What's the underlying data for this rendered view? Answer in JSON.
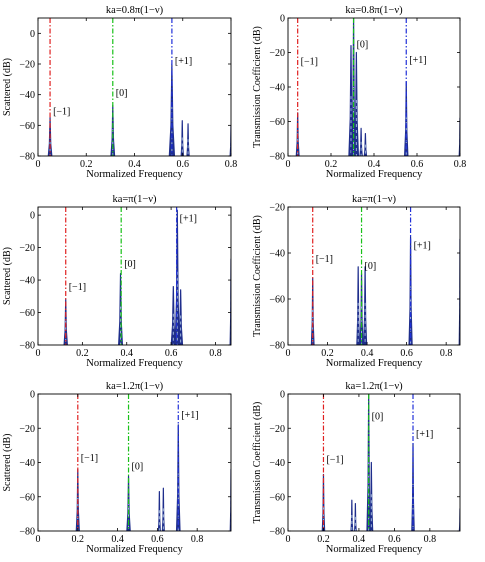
{
  "colors": {
    "signal": "#1f2e8c",
    "signal_light": "#9ab3d8",
    "order_minus1": "#e02020",
    "order_0": "#18c018",
    "order_plus1": "#2030d8"
  },
  "chart_data": [
    {
      "type": "line",
      "title": "ka=0.8π(1−ν)",
      "xlabel": "Normalized Frequency",
      "ylabel": "Scattered (dB)",
      "xlim": [
        0,
        0.8
      ],
      "ylim": [
        -80,
        10
      ],
      "xticks": [
        "0",
        "0.2",
        "0.4",
        "0.6",
        "0.8"
      ],
      "xtick_values": [
        0,
        0.2,
        0.4,
        0.6,
        0.8
      ],
      "yticks": [
        "0",
        "−20",
        "−40",
        "−60",
        "−80"
      ],
      "ytick_values": [
        0,
        -20,
        -40,
        -60,
        -80
      ],
      "order_lines": [
        {
          "label": "[−1]",
          "x": 0.05,
          "label_y": -53
        },
        {
          "label": "[0]",
          "x": 0.31,
          "label_y": -41
        },
        {
          "label": "[+1]",
          "x": 0.555,
          "label_y": -20
        }
      ],
      "peaks": [
        {
          "x": 0.05,
          "top": -55,
          "w": 0.008
        },
        {
          "x": 0.31,
          "top": -47,
          "w": 0.008
        },
        {
          "x": 0.555,
          "top": -20,
          "w": 0.011
        },
        {
          "x": 0.598,
          "top": -57,
          "w": 0.005
        },
        {
          "x": 0.622,
          "top": -59,
          "w": 0.005
        },
        {
          "x": 0.8,
          "top": -60,
          "w": 0.004
        }
      ]
    },
    {
      "type": "line",
      "title": "ka=0.8π(1−ν)",
      "xlabel": "Normalized Frequency",
      "ylabel": "Transmission Coefficient (dB)",
      "xlim": [
        0,
        0.8
      ],
      "ylim": [
        -80,
        0
      ],
      "xticks": [
        "0",
        "0.2",
        "0.4",
        "0.6",
        "0.8"
      ],
      "xtick_values": [
        0,
        0.2,
        0.4,
        0.6,
        0.8
      ],
      "yticks": [
        "0",
        "−20",
        "−40",
        "−60",
        "−80"
      ],
      "ytick_values": [
        0,
        -20,
        -40,
        -60,
        -80
      ],
      "order_lines": [
        {
          "label": "[−1]",
          "x": 0.045,
          "label_y": -27
        },
        {
          "label": "[0]",
          "x": 0.305,
          "label_y": -17
        },
        {
          "label": "[+1]",
          "x": 0.55,
          "label_y": -26
        }
      ],
      "peaks": [
        {
          "x": 0.045,
          "top": -55,
          "w": 0.007
        },
        {
          "x": 0.293,
          "top": -16,
          "w": 0.01
        },
        {
          "x": 0.305,
          "top": 0,
          "w": 0.009
        },
        {
          "x": 0.318,
          "top": -20,
          "w": 0.01
        },
        {
          "x": 0.34,
          "top": -64,
          "w": 0.006
        },
        {
          "x": 0.36,
          "top": -67,
          "w": 0.006
        },
        {
          "x": 0.55,
          "top": -37,
          "w": 0.008
        },
        {
          "x": 0.8,
          "top": -58,
          "w": 0.004
        }
      ]
    },
    {
      "type": "line",
      "title": "ka=π(1−ν)",
      "xlabel": "Normalized Frequency",
      "ylabel": "Scattered (dB)",
      "xlim": [
        0,
        0.87
      ],
      "ylim": [
        -80,
        5
      ],
      "xticks": [
        "0",
        "0.2",
        "0.4",
        "0.6",
        "0.8"
      ],
      "xtick_values": [
        0,
        0.2,
        0.4,
        0.6,
        0.8
      ],
      "yticks": [
        "0",
        "−20",
        "−40",
        "−60",
        "−80"
      ],
      "ytick_values": [
        0,
        -20,
        -40,
        -60,
        -80
      ],
      "order_lines": [
        {
          "label": "[−1]",
          "x": 0.125,
          "label_y": -46
        },
        {
          "label": "[0]",
          "x": 0.375,
          "label_y": -32
        },
        {
          "label": "[+1]",
          "x": 0.625,
          "label_y": -4
        }
      ],
      "peaks": [
        {
          "x": 0.125,
          "top": -52,
          "w": 0.008
        },
        {
          "x": 0.372,
          "top": -36,
          "w": 0.009
        },
        {
          "x": 0.61,
          "top": -44,
          "w": 0.01
        },
        {
          "x": 0.628,
          "top": 3,
          "w": 0.01
        },
        {
          "x": 0.643,
          "top": -46,
          "w": 0.009
        },
        {
          "x": 0.87,
          "top": -27,
          "w": 0.004
        }
      ]
    },
    {
      "type": "line",
      "title": "ka=π(1−ν)",
      "xlabel": "Normalized Frequency",
      "ylabel": "Transmission Coefficient (dB)",
      "xlim": [
        0,
        0.87
      ],
      "ylim": [
        -80,
        -20
      ],
      "xticks": [
        "0",
        "0.2",
        "0.4",
        "0.6",
        "0.8"
      ],
      "xtick_values": [
        0,
        0.2,
        0.4,
        0.6,
        0.8
      ],
      "yticks": [
        "−20",
        "−40",
        "−60",
        "−80"
      ],
      "ytick_values": [
        -20,
        -40,
        -60,
        -80
      ],
      "order_lines": [
        {
          "label": "[−1]",
          "x": 0.125,
          "label_y": -44
        },
        {
          "label": "[0]",
          "x": 0.372,
          "label_y": -47
        },
        {
          "label": "[+1]",
          "x": 0.62,
          "label_y": -38
        }
      ],
      "peaks": [
        {
          "x": 0.125,
          "top": -51,
          "w": 0.007
        },
        {
          "x": 0.355,
          "top": -46,
          "w": 0.007
        },
        {
          "x": 0.372,
          "top": -49,
          "w": 0.008
        },
        {
          "x": 0.39,
          "top": -46,
          "w": 0.008
        },
        {
          "x": 0.62,
          "top": -33,
          "w": 0.008
        },
        {
          "x": 0.87,
          "top": -34,
          "w": 0.004
        }
      ]
    },
    {
      "type": "line",
      "title": "ka=1.2π(1−ν)",
      "xlabel": "Normalized Frequency",
      "ylabel": "Scattered (dB)",
      "xlim": [
        0,
        0.97
      ],
      "ylim": [
        -80,
        0
      ],
      "xticks": [
        "0",
        "0.2",
        "0.4",
        "0.6",
        "0.8"
      ],
      "xtick_values": [
        0,
        0.2,
        0.4,
        0.6,
        0.8
      ],
      "yticks": [
        "0",
        "−20",
        "−40",
        "−60",
        "−80"
      ],
      "ytick_values": [
        0,
        -20,
        -40,
        -60,
        -80
      ],
      "order_lines": [
        {
          "label": "[−1]",
          "x": 0.2,
          "label_y": -39
        },
        {
          "label": "[0]",
          "x": 0.455,
          "label_y": -44
        },
        {
          "label": "[+1]",
          "x": 0.705,
          "label_y": -14
        }
      ],
      "peaks": [
        {
          "x": 0.2,
          "top": -44,
          "w": 0.008
        },
        {
          "x": 0.455,
          "top": -48,
          "w": 0.009
        },
        {
          "x": 0.61,
          "top": -57,
          "w": 0.005
        },
        {
          "x": 0.63,
          "top": -55,
          "w": 0.005
        },
        {
          "x": 0.705,
          "top": -18,
          "w": 0.009
        },
        {
          "x": 0.97,
          "top": -44,
          "w": 0.004
        }
      ]
    },
    {
      "type": "line",
      "title": "ka=1.2π(1−ν)",
      "xlabel": "Normalized Frequency",
      "ylabel": "Transmission Coefficient (dB)",
      "xlim": [
        0,
        0.97
      ],
      "ylim": [
        -80,
        0
      ],
      "xticks": [
        "0",
        "0.2",
        "0.4",
        "0.6",
        "0.8"
      ],
      "xtick_values": [
        0,
        0.2,
        0.4,
        0.6,
        0.8
      ],
      "yticks": [
        "0",
        "−20",
        "−40",
        "−60",
        "−80"
      ],
      "ytick_values": [
        0,
        -20,
        -40,
        -60,
        -80
      ],
      "order_lines": [
        {
          "label": "[−1]",
          "x": 0.2,
          "label_y": -40
        },
        {
          "label": "[0]",
          "x": 0.455,
          "label_y": -15
        },
        {
          "label": "[+1]",
          "x": 0.705,
          "label_y": -25
        }
      ],
      "peaks": [
        {
          "x": 0.2,
          "top": -47,
          "w": 0.007
        },
        {
          "x": 0.36,
          "top": -62,
          "w": 0.005
        },
        {
          "x": 0.38,
          "top": -64,
          "w": 0.005
        },
        {
          "x": 0.455,
          "top": 0,
          "w": 0.01
        },
        {
          "x": 0.47,
          "top": -40,
          "w": 0.008
        },
        {
          "x": 0.705,
          "top": -29,
          "w": 0.007
        },
        {
          "x": 0.97,
          "top": -67,
          "w": 0.004
        }
      ]
    }
  ]
}
